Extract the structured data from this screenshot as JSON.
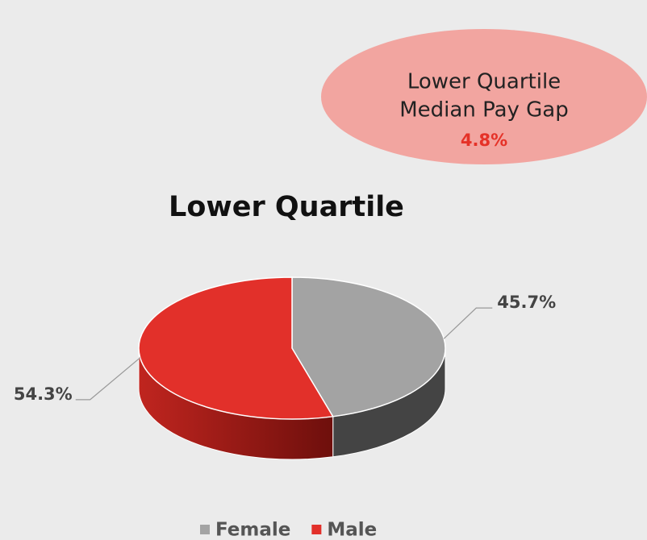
{
  "chart_data": {
    "type": "pie3d",
    "title": "Lower Quartile",
    "categories": [
      "Female",
      "Male"
    ],
    "values": [
      45.7,
      54.3
    ],
    "value_labels": [
      "45.7%",
      "54.3%"
    ],
    "colors": [
      "#a3a3a3",
      "#e2302a"
    ],
    "legend": "bottom",
    "annotation": {
      "lines": [
        "Lower Quartile",
        "Median Pay Gap"
      ],
      "value_label": "4.8%"
    }
  }
}
